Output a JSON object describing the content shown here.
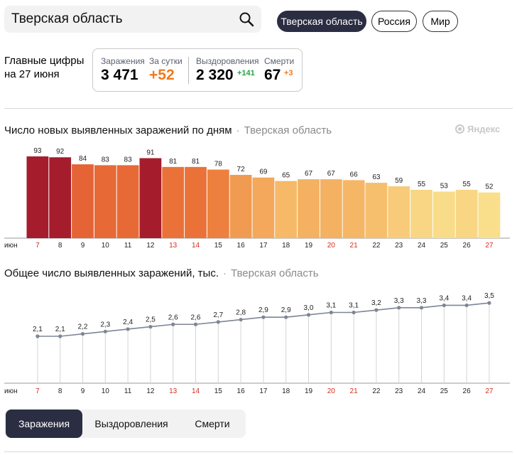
{
  "search": {
    "value": "Тверская область"
  },
  "region_buttons": [
    {
      "label": "Тверская область",
      "active": true
    },
    {
      "label": "Россия",
      "active": false
    },
    {
      "label": "Мир",
      "active": false
    }
  ],
  "summary": {
    "title_line1": "Главные цифры",
    "title_line2": "на 27 июня",
    "cases_label": "Заражения",
    "cases_value": "3 471",
    "daily_label": "За сутки",
    "daily_value": "+52",
    "recovered_label": "Выздоровления",
    "recovered_value": "2 320",
    "recovered_delta": "+141",
    "deaths_label": "Смерти",
    "deaths_value": "67",
    "deaths_delta": "+3"
  },
  "brand": "Яндекс",
  "chart_data": [
    {
      "type": "bar",
      "title": "Число новых выявленных заражений по дням",
      "region": "Тверская область",
      "month_label": "июн",
      "categories": [
        "7",
        "8",
        "9",
        "10",
        "11",
        "12",
        "13",
        "14",
        "15",
        "16",
        "17",
        "18",
        "19",
        "20",
        "21",
        "22",
        "23",
        "24",
        "25",
        "26",
        "27"
      ],
      "weekend": [
        "7",
        "13",
        "14",
        "20",
        "21",
        "27"
      ],
      "values": [
        93,
        92,
        84,
        83,
        83,
        91,
        81,
        81,
        78,
        72,
        69,
        65,
        67,
        67,
        66,
        63,
        59,
        55,
        53,
        55,
        52
      ],
      "ylim": [
        0,
        93
      ]
    },
    {
      "type": "line",
      "title": "Общее число выявленных заражений, тыс.",
      "region": "Тверская область",
      "month_label": "июн",
      "categories": [
        "7",
        "8",
        "9",
        "10",
        "11",
        "12",
        "13",
        "14",
        "15",
        "16",
        "17",
        "18",
        "19",
        "20",
        "21",
        "22",
        "23",
        "24",
        "25",
        "26",
        "27"
      ],
      "weekend": [
        "7",
        "13",
        "14",
        "20",
        "21",
        "27"
      ],
      "values": [
        2.1,
        2.1,
        2.2,
        2.3,
        2.4,
        2.5,
        2.6,
        2.6,
        2.7,
        2.8,
        2.9,
        2.9,
        3.0,
        3.1,
        3.1,
        3.2,
        3.3,
        3.3,
        3.4,
        3.4,
        3.5
      ],
      "labels": [
        "2,1",
        "2,1",
        "2,2",
        "2,3",
        "2,4",
        "2,5",
        "2,6",
        "2,6",
        "2,7",
        "2,8",
        "2,9",
        "2,9",
        "3,0",
        "3,1",
        "3,1",
        "3,2",
        "3,3",
        "3,3",
        "3,4",
        "3,4",
        "3,5"
      ]
    }
  ],
  "tabs": [
    {
      "label": "Заражения",
      "active": true
    },
    {
      "label": "Выздоровления",
      "active": false
    },
    {
      "label": "Смерти",
      "active": false
    }
  ],
  "colors": {
    "accent_dark": "#2b2d42",
    "daily_orange": "#ee7a1e",
    "recovered_green": "#22a344",
    "deaths_orange": "#ee7a1e",
    "weekend_red": "#d62b1f",
    "line": "#7f8596"
  }
}
